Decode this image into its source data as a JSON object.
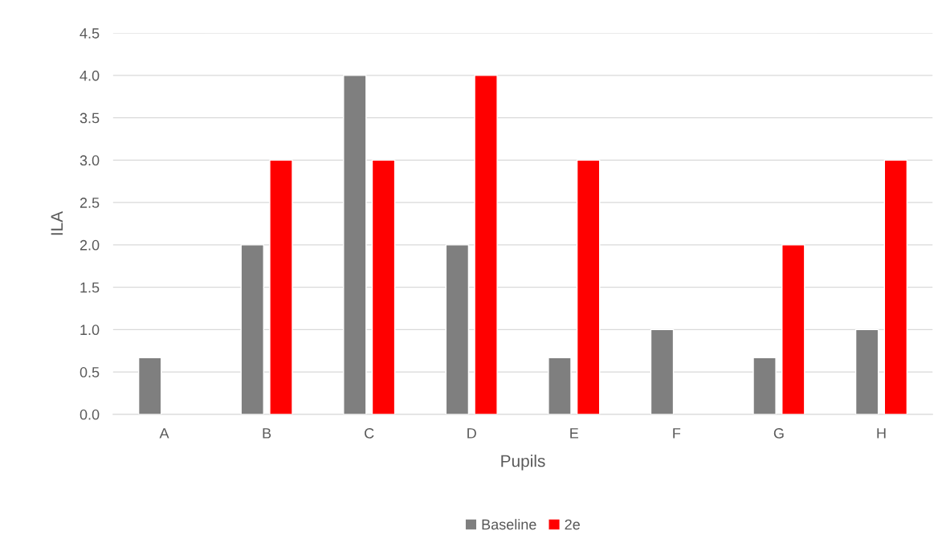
{
  "chart_data": {
    "type": "bar",
    "xlabel": "Pupils",
    "ylabel": "ILA",
    "categories": [
      "A",
      "B",
      "C",
      "D",
      "E",
      "F",
      "G",
      "H"
    ],
    "series": [
      {
        "name": "Baseline",
        "color": "#7f7f7f",
        "values": [
          0.67,
          2,
          4,
          2,
          0.67,
          1,
          0.67,
          1
        ]
      },
      {
        "name": "2e",
        "color": "#ff0000",
        "values": [
          null,
          3,
          3,
          4,
          3,
          null,
          2,
          3
        ]
      }
    ],
    "ylim": [
      0,
      4.5
    ],
    "yticks": [
      {
        "value": 0,
        "label": "0.0"
      },
      {
        "value": 0.5,
        "label": "0.5"
      },
      {
        "value": 1,
        "label": "1.0"
      },
      {
        "value": 1.5,
        "label": "1.5"
      },
      {
        "value": 2,
        "label": "2.0"
      },
      {
        "value": 2.5,
        "label": "2.5"
      },
      {
        "value": 3,
        "label": "3.0"
      },
      {
        "value": 3.5,
        "label": "3.5"
      },
      {
        "value": 4,
        "label": "4.0"
      },
      {
        "value": 4.5,
        "label": "4.5"
      }
    ],
    "grid": "y",
    "legend": "bottom"
  }
}
